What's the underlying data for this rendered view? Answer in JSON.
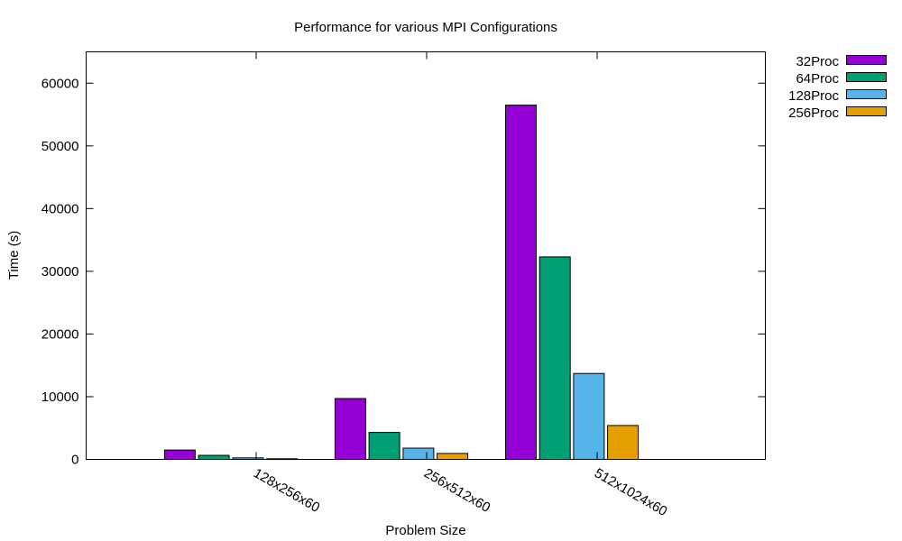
{
  "chart_data": {
    "type": "bar",
    "title": "Performance for various MPI Configurations",
    "xlabel": "Problem Size",
    "ylabel": "Time (s)",
    "categories": [
      "128x256x60",
      "256x512x60",
      "512x1024x60"
    ],
    "ylim": [
      0,
      65000
    ],
    "yticks": [
      0,
      10000,
      20000,
      30000,
      40000,
      50000,
      60000
    ],
    "legend_position": "top-right (outside plot)",
    "grid": false,
    "series": [
      {
        "name": "32Proc",
        "color": "#9400d3",
        "values": [
          1500,
          9700,
          56500
        ]
      },
      {
        "name": "64Proc",
        "color": "#009e73",
        "values": [
          650,
          4300,
          32300
        ]
      },
      {
        "name": "128Proc",
        "color": "#56b4e9",
        "values": [
          250,
          1800,
          13700
        ]
      },
      {
        "name": "256Proc",
        "color": "#e69f00",
        "values": [
          100,
          950,
          5400
        ]
      }
    ]
  }
}
